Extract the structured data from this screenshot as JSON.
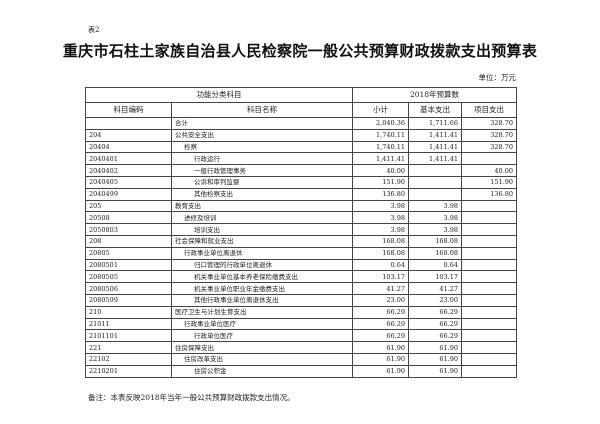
{
  "doc_tag": "表2",
  "title": "重庆市石柱土家族自治县人民检察院一般公共预算财政拨款支出预算表",
  "unit": "单位：万元",
  "header": {
    "group_left": "功能分类科目",
    "group_right": "2018年预算数",
    "code": "科目编码",
    "name": "科目名称",
    "subtotal": "小计",
    "basic": "基本支出",
    "project": "项目支出"
  },
  "rows": [
    {
      "code": "",
      "name": "合计",
      "level": 0,
      "subtotal": "2,040.36",
      "basic": "1,711.66",
      "project": "328.70"
    },
    {
      "code": "204",
      "name": "公共安全支出",
      "level": 0,
      "subtotal": "1,740.11",
      "basic": "1,411.41",
      "project": "328.70"
    },
    {
      "code": "20404",
      "name": "检察",
      "level": 1,
      "subtotal": "1,740.11",
      "basic": "1,411.41",
      "project": "328.70"
    },
    {
      "code": "2040401",
      "name": "行政运行",
      "level": 2,
      "subtotal": "1,411.41",
      "basic": "1,411.41",
      "project": ""
    },
    {
      "code": "2040402",
      "name": "一般行政管理事务",
      "level": 2,
      "subtotal": "40.00",
      "basic": "",
      "project": "40.00"
    },
    {
      "code": "2040405",
      "name": "公诉和审判监督",
      "level": 2,
      "subtotal": "151.90",
      "basic": "",
      "project": "151.90"
    },
    {
      "code": "2040499",
      "name": "其他检察支出",
      "level": 2,
      "subtotal": "136.80",
      "basic": "",
      "project": "136.80"
    },
    {
      "code": "205",
      "name": "教育支出",
      "level": 0,
      "subtotal": "3.98",
      "basic": "3.98",
      "project": ""
    },
    {
      "code": "20508",
      "name": "进修及培训",
      "level": 1,
      "subtotal": "3.98",
      "basic": "3.98",
      "project": ""
    },
    {
      "code": "2050803",
      "name": "培训支出",
      "level": 2,
      "subtotal": "3.98",
      "basic": "3.98",
      "project": ""
    },
    {
      "code": "208",
      "name": "社会保障和就业支出",
      "level": 0,
      "subtotal": "168.08",
      "basic": "168.08",
      "project": ""
    },
    {
      "code": "20805",
      "name": "行政事业单位离退休",
      "level": 1,
      "subtotal": "168.08",
      "basic": "168.08",
      "project": ""
    },
    {
      "code": "2080501",
      "name": "归口管理的行政单位离退休",
      "level": 2,
      "subtotal": "0.64",
      "basic": "0.64",
      "project": ""
    },
    {
      "code": "2080505",
      "name": "机关事业单位基本养老保险缴费支出",
      "level": 2,
      "subtotal": "103.17",
      "basic": "103.17",
      "project": ""
    },
    {
      "code": "2080506",
      "name": "机关事业单位职业年金缴费支出",
      "level": 2,
      "subtotal": "41.27",
      "basic": "41.27",
      "project": ""
    },
    {
      "code": "2080599",
      "name": "其他行政事业单位离退休支出",
      "level": 2,
      "subtotal": "23.00",
      "basic": "23.00",
      "project": ""
    },
    {
      "code": "210",
      "name": "医疗卫生与计划生育支出",
      "level": 0,
      "subtotal": "66.29",
      "basic": "66.29",
      "project": ""
    },
    {
      "code": "21011",
      "name": "行政事业单位医疗",
      "level": 1,
      "subtotal": "66.29",
      "basic": "66.29",
      "project": ""
    },
    {
      "code": "2101101",
      "name": "行政单位医疗",
      "level": 2,
      "subtotal": "66.29",
      "basic": "66.29",
      "project": ""
    },
    {
      "code": "221",
      "name": "住房保障支出",
      "level": 0,
      "subtotal": "61.90",
      "basic": "61.90",
      "project": ""
    },
    {
      "code": "22102",
      "name": "住房改革支出",
      "level": 1,
      "subtotal": "61.90",
      "basic": "61.90",
      "project": ""
    },
    {
      "code": "2210201",
      "name": "住房公积金",
      "level": 2,
      "subtotal": "61.90",
      "basic": "61.90",
      "project": ""
    }
  ],
  "note": "备注：本表反映2018年当年一般公共预算财政拨款支出情况。"
}
